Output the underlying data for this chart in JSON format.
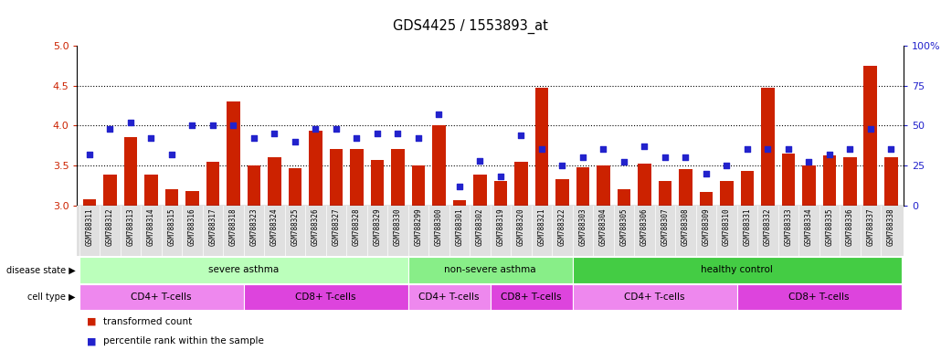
{
  "title": "GDS4425 / 1553893_at",
  "samples": [
    "GSM788311",
    "GSM788312",
    "GSM788313",
    "GSM788314",
    "GSM788315",
    "GSM788316",
    "GSM788317",
    "GSM788318",
    "GSM788323",
    "GSM788324",
    "GSM788325",
    "GSM788326",
    "GSM788327",
    "GSM788328",
    "GSM788329",
    "GSM788330",
    "GSM788299",
    "GSM788300",
    "GSM788301",
    "GSM788302",
    "GSM788319",
    "GSM788320",
    "GSM788321",
    "GSM788322",
    "GSM788303",
    "GSM788304",
    "GSM788305",
    "GSM788306",
    "GSM788307",
    "GSM788308",
    "GSM788309",
    "GSM788310",
    "GSM788331",
    "GSM788332",
    "GSM788333",
    "GSM788334",
    "GSM788335",
    "GSM788336",
    "GSM788337",
    "GSM788338"
  ],
  "bar_values": [
    3.08,
    3.38,
    3.85,
    3.38,
    3.2,
    3.18,
    3.55,
    4.3,
    3.5,
    3.6,
    3.46,
    3.93,
    3.7,
    3.7,
    3.57,
    3.7,
    3.5,
    4.0,
    3.07,
    3.38,
    3.3,
    3.55,
    4.47,
    3.33,
    3.48,
    3.5,
    3.2,
    3.52,
    3.3,
    3.45,
    3.17,
    3.3,
    3.43,
    4.47,
    3.65,
    3.5,
    3.62,
    3.6,
    4.75,
    3.6
  ],
  "dot_pct": [
    32,
    48,
    52,
    42,
    32,
    50,
    50,
    50,
    42,
    45,
    40,
    48,
    48,
    42,
    45,
    45,
    42,
    57,
    12,
    28,
    18,
    44,
    35,
    25,
    30,
    35,
    27,
    37,
    30,
    30,
    20,
    25,
    35,
    35,
    35,
    27,
    32,
    35,
    48,
    35
  ],
  "ylim_left": [
    3.0,
    5.0
  ],
  "ylim_right": [
    0,
    100
  ],
  "yticks_left": [
    3.0,
    3.5,
    4.0,
    4.5,
    5.0
  ],
  "yticks_right": [
    0,
    25,
    50,
    75,
    100
  ],
  "bar_color": "#cc2200",
  "dot_color": "#2222cc",
  "disease_state_groups": [
    {
      "label": "severe asthma",
      "start": 0,
      "end": 15,
      "color": "#bbffbb"
    },
    {
      "label": "non-severe asthma",
      "start": 16,
      "end": 23,
      "color": "#88ee88"
    },
    {
      "label": "healthy control",
      "start": 24,
      "end": 39,
      "color": "#44cc44"
    }
  ],
  "cell_type_groups": [
    {
      "label": "CD4+ T-cells",
      "start": 0,
      "end": 7,
      "color": "#ee88ee"
    },
    {
      "label": "CD8+ T-cells",
      "start": 8,
      "end": 15,
      "color": "#dd44dd"
    },
    {
      "label": "CD4+ T-cells",
      "start": 16,
      "end": 19,
      "color": "#ee88ee"
    },
    {
      "label": "CD8+ T-cells",
      "start": 20,
      "end": 23,
      "color": "#dd44dd"
    },
    {
      "label": "CD4+ T-cells",
      "start": 24,
      "end": 31,
      "color": "#ee88ee"
    },
    {
      "label": "CD8+ T-cells",
      "start": 32,
      "end": 39,
      "color": "#dd44dd"
    }
  ]
}
